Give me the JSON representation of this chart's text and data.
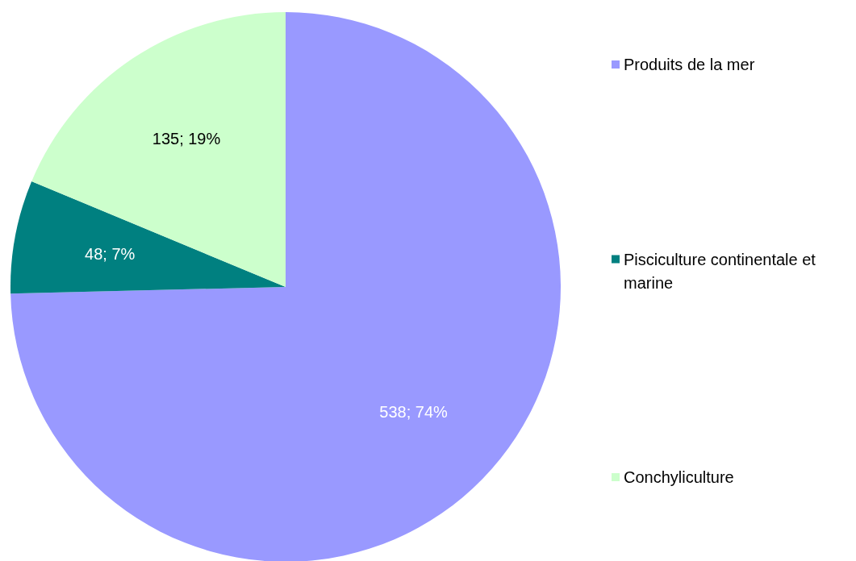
{
  "chart_data": {
    "type": "pie",
    "categories": [
      "Produits de la mer",
      "Pisciculture continentale et marine",
      "Conchyliculture"
    ],
    "values": [
      538,
      48,
      135
    ],
    "value_labels": [
      "538; 74%",
      "48; 7%",
      "135; 19%"
    ],
    "colors": [
      "#9999ff",
      "#008080",
      "#ccffcc"
    ],
    "legend": "right"
  }
}
